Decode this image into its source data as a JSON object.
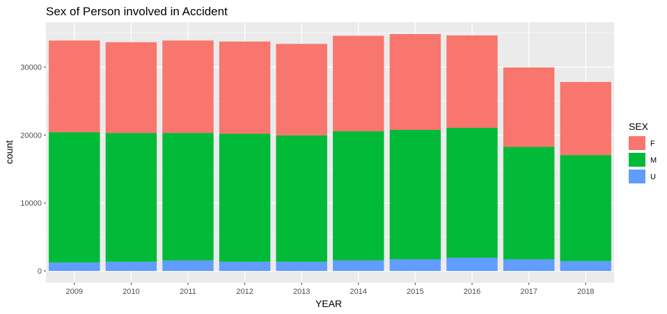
{
  "chart_data": {
    "type": "bar",
    "stacked": true,
    "title": "Sex of Person involved in Accident",
    "xlabel": "YEAR",
    "ylabel": "count",
    "ylim": [
      0,
      36000
    ],
    "yticks": [
      0,
      10000,
      20000,
      30000
    ],
    "ytick_labels": [
      "0",
      "10000",
      "20000",
      "30000"
    ],
    "grid": true,
    "legend_position": "right",
    "legend_title": "SEX",
    "categories": [
      "2009",
      "2010",
      "2011",
      "2012",
      "2013",
      "2014",
      "2015",
      "2016",
      "2017",
      "2018"
    ],
    "series": [
      {
        "name": "U",
        "color": "#619cff",
        "values": [
          1250,
          1350,
          1550,
          1350,
          1350,
          1550,
          1700,
          1950,
          1700,
          1450
        ]
      },
      {
        "name": "M",
        "color": "#00ba38",
        "values": [
          19150,
          18950,
          18750,
          18850,
          18600,
          19000,
          19050,
          19100,
          16550,
          15600
        ]
      },
      {
        "name": "F",
        "color": "#f8766d",
        "values": [
          13500,
          13350,
          13600,
          13550,
          13450,
          14050,
          14100,
          13600,
          11700,
          10750
        ]
      }
    ],
    "legend_order": [
      "F",
      "M",
      "U"
    ]
  }
}
